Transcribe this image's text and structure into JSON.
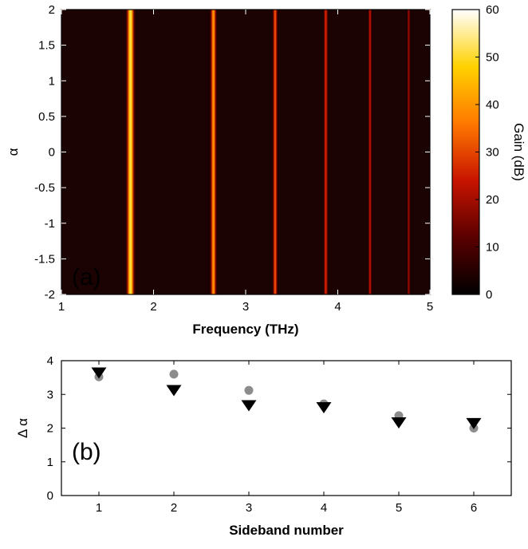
{
  "chart_data": [
    {
      "panel_label": "(a)",
      "type": "heatmap",
      "xlabel": "Frequency (THz)",
      "ylabel": "α",
      "xlim": [
        1,
        5
      ],
      "ylim": [
        -2,
        2
      ],
      "x_ticks": [
        "1",
        "2",
        "3",
        "4",
        "5"
      ],
      "y_ticks": [
        "-2",
        "-1.5",
        "-1",
        "-0.5",
        "0",
        "0.5",
        "1",
        "1.5",
        "2"
      ],
      "colorbar": {
        "label": "Gain (dB)",
        "range": [
          0,
          60
        ],
        "ticks": [
          "0",
          "10",
          "20",
          "30",
          "40",
          "50",
          "60"
        ],
        "colormap": "hot",
        "colors": [
          "#000000",
          "#5a0000",
          "#c81400",
          "#ff7800",
          "#ffd200",
          "#ffffff"
        ]
      },
      "background_color": "#1a0302",
      "bands": [
        {
          "sideband": 1,
          "frequency_thz": 1.75,
          "peak_gain_db": 52,
          "width_thz": 0.13
        },
        {
          "sideband": 2,
          "frequency_thz": 2.65,
          "peak_gain_db": 40,
          "width_thz": 0.1
        },
        {
          "sideband": 3,
          "frequency_thz": 3.32,
          "peak_gain_db": 32,
          "width_thz": 0.08
        },
        {
          "sideband": 4,
          "frequency_thz": 3.87,
          "peak_gain_db": 27,
          "width_thz": 0.07
        },
        {
          "sideband": 5,
          "frequency_thz": 4.35,
          "peak_gain_db": 23,
          "width_thz": 0.06
        },
        {
          "sideband": 6,
          "frequency_thz": 4.77,
          "peak_gain_db": 19,
          "width_thz": 0.055
        }
      ]
    },
    {
      "panel_label": "(b)",
      "type": "scatter",
      "xlabel": "Sideband number",
      "ylabel": "Δ α",
      "xlim": [
        0.5,
        6.5
      ],
      "ylim": [
        0,
        4
      ],
      "x_ticks": [
        "1",
        "2",
        "3",
        "4",
        "5",
        "6"
      ],
      "y_ticks": [
        "0",
        "1",
        "2",
        "3",
        "4"
      ],
      "series": [
        {
          "marker": "circle",
          "color": "#8c8c8c",
          "x": [
            1,
            2,
            3,
            4,
            5,
            6
          ],
          "y": [
            3.52,
            3.6,
            3.12,
            2.72,
            2.37,
            2.0
          ]
        },
        {
          "marker": "triangle-down",
          "color": "#000000",
          "x": [
            1,
            2,
            3,
            4,
            5,
            6
          ],
          "y": [
            3.65,
            3.13,
            2.68,
            2.62,
            2.17,
            2.15
          ]
        }
      ]
    }
  ]
}
